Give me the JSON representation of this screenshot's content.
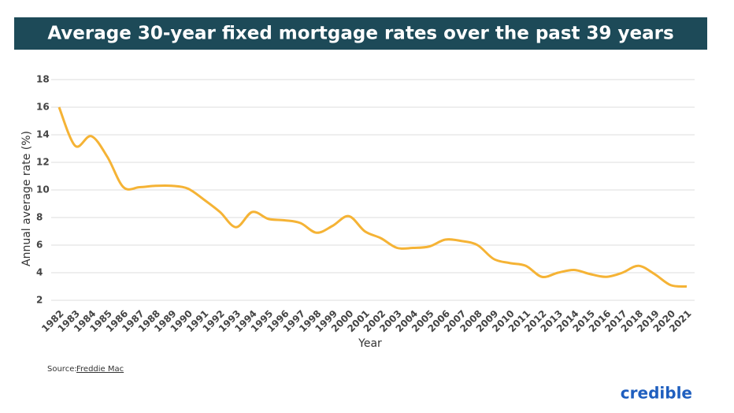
{
  "chart_data": {
    "type": "line",
    "title": "Average 30-year fixed mortgage rates over the past 39 years",
    "x_label": "Year",
    "y_label": "Annual average rate (%)",
    "categories": [
      "1982",
      "1983",
      "1984",
      "1985",
      "1986",
      "1987",
      "1988",
      "1989",
      "1990",
      "1991",
      "1992",
      "1993",
      "1994",
      "1995",
      "1996",
      "1997",
      "1998",
      "1999",
      "2000",
      "2001",
      "2002",
      "2003",
      "2004",
      "2005",
      "2006",
      "2007",
      "2008",
      "2009",
      "2010",
      "2011",
      "2012",
      "2013",
      "2014",
      "2015",
      "2016",
      "2017",
      "2018",
      "2019",
      "2020",
      "2021"
    ],
    "values": [
      16.0,
      13.2,
      13.9,
      12.4,
      10.2,
      10.2,
      10.3,
      10.3,
      10.1,
      9.3,
      8.4,
      7.3,
      8.4,
      7.9,
      7.8,
      7.6,
      6.9,
      7.4,
      8.1,
      7.0,
      6.5,
      5.8,
      5.8,
      5.9,
      6.4,
      6.3,
      6.0,
      5.0,
      4.7,
      4.5,
      3.7,
      4.0,
      4.2,
      3.9,
      3.7,
      4.0,
      4.5,
      3.9,
      3.1,
      3.0
    ],
    "color": "#f5b335",
    "ylim": [
      2,
      18
    ],
    "yticks": [
      2,
      4,
      6,
      8,
      10,
      12,
      14,
      16,
      18
    ],
    "grid": true,
    "source_label": "Source:",
    "source_name": "Freddie Mac",
    "logo": "credible"
  }
}
